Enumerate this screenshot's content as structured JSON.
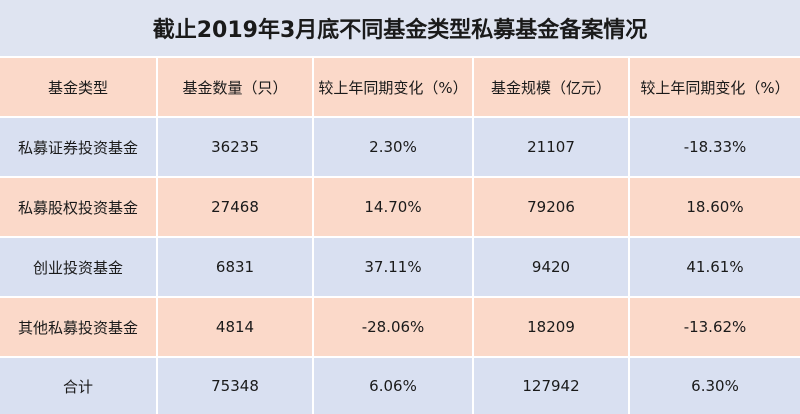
{
  "title": "截止2019年3月底不同基金类型私募基金备案情况",
  "table": {
    "header": [
      "基金类型",
      "基金数量（只）",
      "较上年同期变化（%）",
      "基金规模（亿元）",
      "较上年同期变化（%）"
    ],
    "rows": [
      [
        "私募证券投资基金",
        "36235",
        "2.30%",
        "21107",
        "-18.33%"
      ],
      [
        "私募股权投资基金",
        "27468",
        "14.70%",
        "79206",
        "18.60%"
      ],
      [
        "创业投资基金",
        "6831",
        "37.11%",
        "9420",
        "41.61%"
      ],
      [
        "其他私募投资基金",
        "4814",
        "-28.06%",
        "18209",
        "-13.62%"
      ],
      [
        "合计",
        "75348",
        "6.06%",
        "127942",
        "6.30%"
      ]
    ]
  }
}
